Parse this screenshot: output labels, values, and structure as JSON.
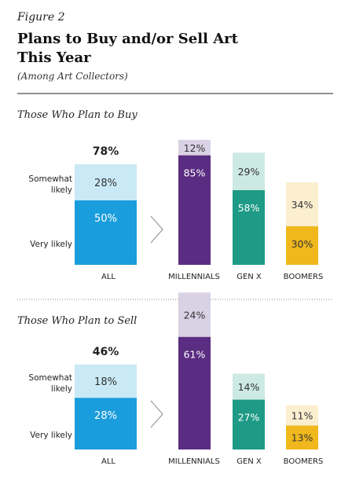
{
  "header": {
    "figure_label": "Figure 2",
    "title_line1": "Plans to Buy and/or Sell Art",
    "title_line2": "This Year",
    "subtitle": "(Among Art Collectors)"
  },
  "chart_data": [
    {
      "type": "bar",
      "stacked": true,
      "title": "Those Who Plan to Buy",
      "total_label": "78%",
      "categories": [
        "ALL",
        "MILLENNIALS",
        "GEN X",
        "BOOMERS"
      ],
      "series": [
        {
          "name": "Very likely",
          "values": [
            50,
            85,
            58,
            30
          ],
          "labels": [
            "50%",
            "85%",
            "58%",
            "30%"
          ]
        },
        {
          "name": "Somewhat likely",
          "values": [
            28,
            12,
            29,
            34
          ],
          "labels": [
            "28%",
            "12%",
            "29%",
            "34%"
          ]
        }
      ],
      "legend_labels": {
        "very": "Very likely",
        "somewhat_line1": "Somewhat",
        "somewhat_line2": "likely"
      }
    },
    {
      "type": "bar",
      "stacked": true,
      "title": "Those Who Plan to Sell",
      "total_label": "46%",
      "categories": [
        "ALL",
        "MILLENNIALS",
        "GEN X",
        "BOOMERS"
      ],
      "series": [
        {
          "name": "Very likely",
          "values": [
            28,
            61,
            27,
            13
          ],
          "labels": [
            "28%",
            "61%",
            "27%",
            "13%"
          ]
        },
        {
          "name": "Somewhat likely",
          "values": [
            18,
            24,
            14,
            11
          ],
          "labels": [
            "18%",
            "24%",
            "14%",
            "11%"
          ]
        }
      ],
      "legend_labels": {
        "very": "Very likely",
        "somewhat_line1": "Somewhat",
        "somewhat_line2": "likely"
      }
    }
  ],
  "colors": {
    "all_dark": "#1a9ddc",
    "all_light": "#c9e9f6",
    "millennials_dark": "#5b2d82",
    "millennials_light": "#d9d2e4",
    "genx_dark": "#1e9a86",
    "genx_light": "#cce9e3",
    "boomers_dark": "#f0b81c",
    "boomers_light": "#fbefcf"
  }
}
